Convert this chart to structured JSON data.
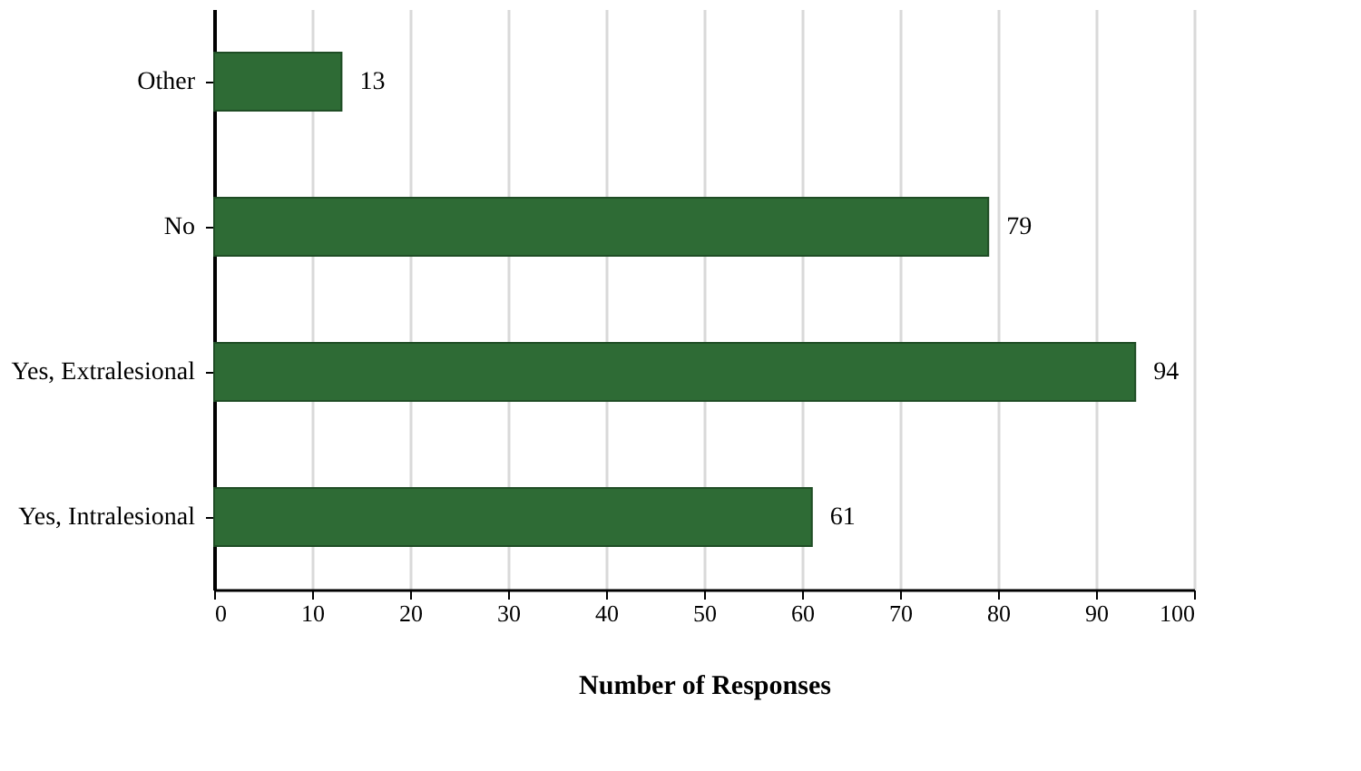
{
  "chart_data": {
    "type": "bar",
    "orientation": "horizontal",
    "xlabel": "Number of Responses",
    "categories": [
      "Other",
      "No",
      "Yes, Extralesional",
      "Yes, Intralesional"
    ],
    "values": [
      13,
      79,
      94,
      61
    ],
    "color": "#2e6b35",
    "xlim": [
      0,
      100
    ],
    "xticks": [
      0,
      10,
      20,
      30,
      40,
      50,
      60,
      70,
      80,
      90,
      100
    ],
    "grid": "x",
    "data_labels": true
  }
}
